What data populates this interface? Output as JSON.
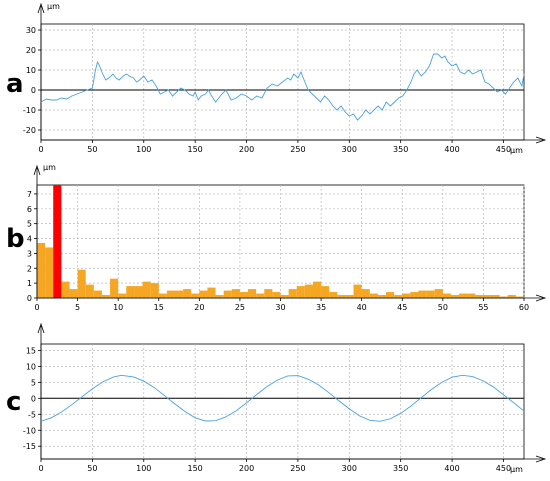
{
  "chart_data": [
    {
      "panel_label": "a",
      "type": "line",
      "y_unit": "µm",
      "x_unit": "µm",
      "xlim": [
        0,
        470
      ],
      "ylim": [
        -25,
        33
      ],
      "x_ticks": [
        0,
        50,
        100,
        150,
        200,
        250,
        300,
        350,
        400,
        450
      ],
      "y_ticks": [
        -20,
        -10,
        0,
        10,
        20,
        30
      ],
      "grid": true,
      "line_color": "#4aa3df",
      "points": [
        [
          0,
          -6
        ],
        [
          5,
          -4.5
        ],
        [
          10,
          -5
        ],
        [
          15,
          -5
        ],
        [
          20,
          -4
        ],
        [
          25,
          -4.5
        ],
        [
          30,
          -3
        ],
        [
          35,
          -2
        ],
        [
          40,
          -1
        ],
        [
          45,
          0
        ],
        [
          50,
          1
        ],
        [
          53,
          10
        ],
        [
          55,
          14
        ],
        [
          57,
          12
        ],
        [
          60,
          8
        ],
        [
          63,
          5
        ],
        [
          66,
          6
        ],
        [
          70,
          8
        ],
        [
          73,
          6
        ],
        [
          76,
          5
        ],
        [
          80,
          7
        ],
        [
          83,
          8
        ],
        [
          86,
          7
        ],
        [
          90,
          6
        ],
        [
          93,
          4
        ],
        [
          96,
          5
        ],
        [
          100,
          7
        ],
        [
          104,
          4
        ],
        [
          108,
          5
        ],
        [
          112,
          2
        ],
        [
          116,
          -2
        ],
        [
          120,
          -1
        ],
        [
          124,
          0
        ],
        [
          128,
          -3
        ],
        [
          132,
          -1
        ],
        [
          136,
          1
        ],
        [
          140,
          0
        ],
        [
          144,
          -2
        ],
        [
          148,
          -3
        ],
        [
          150,
          -1
        ],
        [
          153,
          -5
        ],
        [
          156,
          -3
        ],
        [
          160,
          -2
        ],
        [
          163,
          0
        ],
        [
          166,
          -3
        ],
        [
          170,
          -6
        ],
        [
          173,
          -4
        ],
        [
          176,
          -2
        ],
        [
          180,
          0
        ],
        [
          185,
          -5
        ],
        [
          190,
          -4
        ],
        [
          195,
          -2
        ],
        [
          200,
          -3
        ],
        [
          205,
          -5
        ],
        [
          210,
          -3
        ],
        [
          215,
          -4
        ],
        [
          220,
          1
        ],
        [
          225,
          3
        ],
        [
          230,
          2
        ],
        [
          235,
          4
        ],
        [
          240,
          6
        ],
        [
          243,
          5
        ],
        [
          246,
          8
        ],
        [
          250,
          6
        ],
        [
          253,
          9
        ],
        [
          256,
          5
        ],
        [
          260,
          0
        ],
        [
          264,
          -2
        ],
        [
          268,
          -4
        ],
        [
          272,
          -6
        ],
        [
          276,
          -3
        ],
        [
          280,
          -5
        ],
        [
          284,
          -8
        ],
        [
          288,
          -10
        ],
        [
          292,
          -8
        ],
        [
          296,
          -11
        ],
        [
          300,
          -13
        ],
        [
          304,
          -12
        ],
        [
          308,
          -15
        ],
        [
          312,
          -13
        ],
        [
          316,
          -10
        ],
        [
          320,
          -12
        ],
        [
          324,
          -10
        ],
        [
          328,
          -8
        ],
        [
          332,
          -10
        ],
        [
          336,
          -6
        ],
        [
          340,
          -8
        ],
        [
          344,
          -6
        ],
        [
          348,
          -4
        ],
        [
          352,
          -3
        ],
        [
          356,
          0
        ],
        [
          360,
          4
        ],
        [
          363,
          8
        ],
        [
          366,
          10
        ],
        [
          370,
          7
        ],
        [
          374,
          9
        ],
        [
          378,
          12
        ],
        [
          382,
          18
        ],
        [
          386,
          18
        ],
        [
          390,
          16
        ],
        [
          393,
          17
        ],
        [
          396,
          14
        ],
        [
          400,
          12
        ],
        [
          404,
          13
        ],
        [
          408,
          9
        ],
        [
          412,
          8
        ],
        [
          416,
          10
        ],
        [
          420,
          8
        ],
        [
          424,
          9
        ],
        [
          428,
          10
        ],
        [
          432,
          4
        ],
        [
          436,
          3
        ],
        [
          440,
          1
        ],
        [
          444,
          -1
        ],
        [
          448,
          0
        ],
        [
          452,
          -2
        ],
        [
          456,
          1
        ],
        [
          460,
          4
        ],
        [
          464,
          6
        ],
        [
          468,
          2
        ],
        [
          470,
          8
        ]
      ]
    },
    {
      "panel_label": "b",
      "type": "bar",
      "y_unit": "µm",
      "xlim": [
        0,
        60
      ],
      "ylim": [
        0,
        7.6
      ],
      "x_ticks": [
        0,
        5,
        10,
        15,
        20,
        25,
        30,
        35,
        40,
        45,
        50,
        55,
        60
      ],
      "y_ticks": [
        0,
        1,
        2,
        3,
        4,
        5,
        6,
        7
      ],
      "grid": true,
      "bar_color": "#f5a623",
      "highlight_color": "#ff0000",
      "highlight_index": 2,
      "bar_width": 1,
      "bars": [
        [
          1,
          3.7
        ],
        [
          2,
          3.4
        ],
        [
          3,
          7.6
        ],
        [
          4,
          1.1
        ],
        [
          5,
          0.6
        ],
        [
          6,
          1.9
        ],
        [
          7,
          0.9
        ],
        [
          8,
          0.5
        ],
        [
          9,
          0.2
        ],
        [
          10,
          1.3
        ],
        [
          11,
          0.3
        ],
        [
          12,
          0.8
        ],
        [
          13,
          0.8
        ],
        [
          14,
          1.1
        ],
        [
          15,
          1.0
        ],
        [
          16,
          0.3
        ],
        [
          17,
          0.5
        ],
        [
          18,
          0.5
        ],
        [
          19,
          0.6
        ],
        [
          20,
          0.3
        ],
        [
          21,
          0.5
        ],
        [
          22,
          0.7
        ],
        [
          23,
          0.2
        ],
        [
          24,
          0.5
        ],
        [
          25,
          0.6
        ],
        [
          26,
          0.4
        ],
        [
          27,
          0.6
        ],
        [
          28,
          0.3
        ],
        [
          29,
          0.6
        ],
        [
          30,
          0.4
        ],
        [
          31,
          0.2
        ],
        [
          32,
          0.6
        ],
        [
          33,
          0.8
        ],
        [
          34,
          0.9
        ],
        [
          35,
          1.1
        ],
        [
          36,
          0.8
        ],
        [
          37,
          0.4
        ],
        [
          38,
          0.2
        ],
        [
          39,
          0.2
        ],
        [
          40,
          0.9
        ],
        [
          41,
          0.6
        ],
        [
          42,
          0.3
        ],
        [
          43,
          0.2
        ],
        [
          44,
          0.4
        ],
        [
          45,
          0.2
        ],
        [
          46,
          0.3
        ],
        [
          47,
          0.4
        ],
        [
          48,
          0.5
        ],
        [
          49,
          0.5
        ],
        [
          50,
          0.6
        ],
        [
          51,
          0.3
        ],
        [
          52,
          0.2
        ],
        [
          53,
          0.3
        ],
        [
          54,
          0.3
        ],
        [
          55,
          0.2
        ],
        [
          56,
          0.2
        ],
        [
          57,
          0.2
        ],
        [
          58,
          0.1
        ],
        [
          59,
          0.2
        ],
        [
          60,
          0.1
        ]
      ]
    },
    {
      "panel_label": "c",
      "type": "line",
      "x_unit": "µm",
      "xlim": [
        0,
        470
      ],
      "ylim": [
        -19,
        17
      ],
      "x_ticks": [
        0,
        50,
        100,
        150,
        200,
        250,
        300,
        350,
        400,
        450
      ],
      "y_ticks": [
        -15,
        -10,
        -5,
        0,
        5,
        10,
        15
      ],
      "grid": true,
      "line_color": "#4aa3df",
      "points": [
        [
          0,
          -7.2
        ],
        [
          10,
          -6.1
        ],
        [
          20,
          -4.3
        ],
        [
          30,
          -2.0
        ],
        [
          40,
          0.5
        ],
        [
          50,
          3.0
        ],
        [
          60,
          5.1
        ],
        [
          70,
          6.6
        ],
        [
          78,
          7.2
        ],
        [
          90,
          6.7
        ],
        [
          100,
          5.4
        ],
        [
          110,
          3.4
        ],
        [
          120,
          0.9
        ],
        [
          130,
          -1.7
        ],
        [
          140,
          -4.1
        ],
        [
          150,
          -6.1
        ],
        [
          160,
          -7.1
        ],
        [
          170,
          -7.0
        ],
        [
          180,
          -5.8
        ],
        [
          190,
          -3.9
        ],
        [
          200,
          -1.4
        ],
        [
          210,
          1.2
        ],
        [
          220,
          3.7
        ],
        [
          230,
          5.7
        ],
        [
          240,
          7.0
        ],
        [
          250,
          7.1
        ],
        [
          260,
          6.0
        ],
        [
          270,
          4.2
        ],
        [
          280,
          1.8
        ],
        [
          290,
          -0.8
        ],
        [
          300,
          -3.3
        ],
        [
          310,
          -5.5
        ],
        [
          320,
          -6.9
        ],
        [
          330,
          -7.2
        ],
        [
          340,
          -6.4
        ],
        [
          350,
          -4.7
        ],
        [
          360,
          -2.4
        ],
        [
          370,
          0.2
        ],
        [
          380,
          2.8
        ],
        [
          390,
          5.0
        ],
        [
          400,
          6.6
        ],
        [
          410,
          7.2
        ],
        [
          420,
          6.8
        ],
        [
          430,
          5.5
        ],
        [
          440,
          3.6
        ],
        [
          450,
          1.1
        ],
        [
          460,
          -1.4
        ],
        [
          470,
          -4.0
        ]
      ]
    }
  ]
}
